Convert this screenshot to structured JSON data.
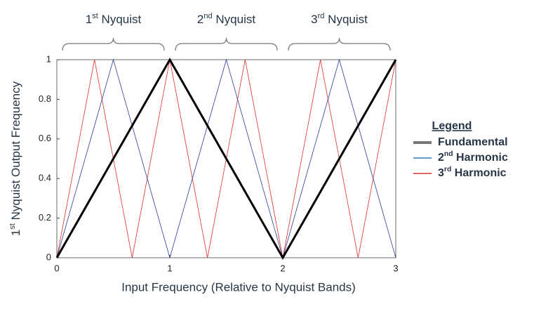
{
  "chart_data": {
    "type": "line",
    "x_label": "Input Frequency (Relative to Nyquist Bands)",
    "y_label": "1st Nyquist Output Frequency",
    "xlim": [
      0,
      3
    ],
    "ylim": [
      0,
      1
    ],
    "xticks": [
      0,
      1,
      2,
      3
    ],
    "yticks": [
      0,
      0.2,
      0.4,
      0.6,
      0.8,
      1
    ],
    "grid": false,
    "annotations": [
      {
        "text": "1st Nyquist"
      },
      {
        "text": "2nd Nyquist"
      },
      {
        "text": "3rd Nyquist"
      }
    ],
    "legend_title": "Legend",
    "legend": "right",
    "series": [
      {
        "name": "Fundamental",
        "color": "#000000",
        "legend_color": "#777777",
        "width": 3,
        "x": [
          0,
          1,
          2,
          3
        ],
        "values": [
          0,
          1,
          0,
          1
        ]
      },
      {
        "name": "2nd Harmonic",
        "color": "#2b3a9e",
        "legend_color": "#2e7bc4",
        "width": 0.8,
        "x": [
          0,
          0.5,
          1,
          1.5,
          2,
          2.5,
          3
        ],
        "values": [
          0,
          1,
          0,
          1,
          0,
          1,
          0
        ]
      },
      {
        "name": "3rd Harmonic",
        "color": "#d9302c",
        "legend_color": "#d9302c",
        "width": 0.8,
        "x": [
          0,
          0.3333,
          0.6667,
          1,
          1.3333,
          1.6667,
          2,
          2.3333,
          2.6667,
          3
        ],
        "values": [
          0,
          1,
          0,
          1,
          0,
          1,
          0,
          1,
          0,
          1
        ]
      }
    ]
  }
}
